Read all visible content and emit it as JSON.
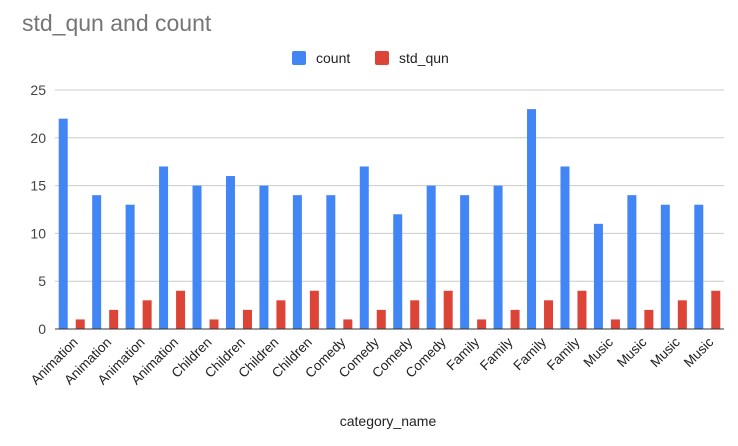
{
  "chart_data": {
    "type": "bar",
    "title": "std_qun and count",
    "xlabel": "category_name",
    "ylabel": "",
    "ylim": [
      0,
      25
    ],
    "yticks": [
      0,
      5,
      10,
      15,
      20,
      25
    ],
    "grid": true,
    "legend_position": "top",
    "categories": [
      "Animation",
      "Animation",
      "Animation",
      "Animation",
      "Children",
      "Children",
      "Children",
      "Children",
      "Comedy",
      "Comedy",
      "Comedy",
      "Comedy",
      "Family",
      "Family",
      "Family",
      "Family",
      "Music",
      "Music",
      "Music",
      "Music"
    ],
    "series": [
      {
        "name": "count",
        "color": "#4285f4",
        "values": [
          22,
          14,
          13,
          17,
          15,
          16,
          15,
          14,
          14,
          17,
          12,
          15,
          14,
          15,
          23,
          17,
          11,
          14,
          13,
          13
        ]
      },
      {
        "name": "std_qun",
        "color": "#db4437",
        "values": [
          1,
          2,
          3,
          4,
          1,
          2,
          3,
          4,
          1,
          2,
          3,
          4,
          1,
          2,
          3,
          4,
          1,
          2,
          3,
          4
        ]
      }
    ]
  }
}
